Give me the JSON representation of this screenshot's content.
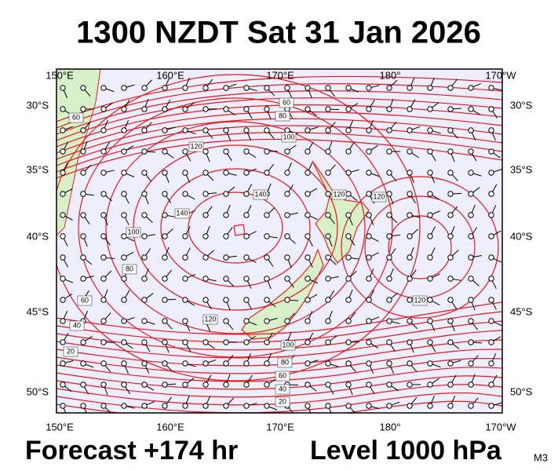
{
  "title": "1300 NZDT Sat 31 Jan 2026",
  "map": {
    "top_labels": [
      "150°E",
      "160°E",
      "170°E",
      "180°",
      "170°W"
    ],
    "bottom_labels": [
      "150°E",
      "160°E",
      "170°E",
      "180°",
      "170°W"
    ],
    "left_labels": [
      "30°S",
      "35°S",
      "40°S",
      "45°S",
      "50°S"
    ],
    "right_labels": [
      "30°S",
      "35°S",
      "40°S",
      "45°S",
      "50°S"
    ],
    "contour_labels": [
      "60",
      "80",
      "100",
      "120",
      "140",
      "140",
      "100",
      "80",
      "60",
      "40",
      "20",
      "120",
      "120",
      "120",
      "120",
      "100",
      "80",
      "60",
      "40",
      "20",
      "60"
    ]
  },
  "footer": {
    "forecast": "Forecast +174 hr",
    "level": "Level 1000 hPa",
    "model": "M3"
  }
}
